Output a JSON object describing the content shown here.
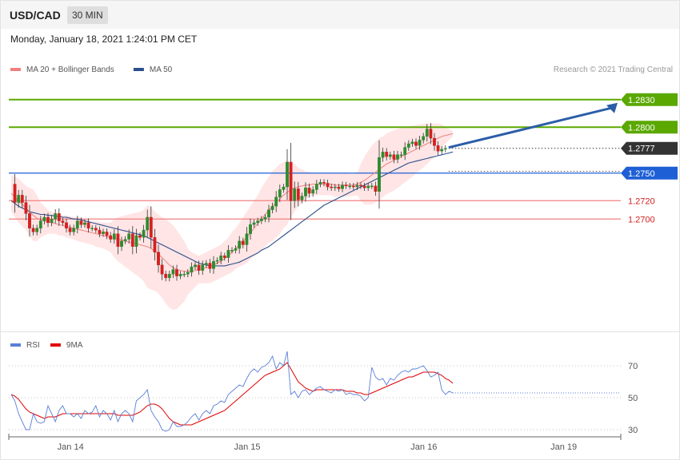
{
  "header": {
    "symbol": "USD/CAD",
    "timeframe": "30 MIN"
  },
  "timestamp": "Monday, January 18, 2021 1:24:01 PM CET",
  "credit": "Research © 2021 Trading Central",
  "colors": {
    "ma20": "#f08080",
    "ma50": "#2b4f8c",
    "band_fill": "#ffe0e0",
    "bull": "#2e8b2e",
    "bear": "#d42020",
    "resistance": "#5aa800",
    "pivot": "#1f5fd6",
    "support": "#f08080",
    "current": "#333333",
    "rsi": "#5a7fd6",
    "rsi_ma": "#e00000",
    "arrow": "#2b5ea8"
  },
  "chart_data": [
    {
      "type": "candlestick",
      "legend": [
        {
          "label": "MA 20 + Bollinger Bands",
          "color": "#f08080"
        },
        {
          "label": "MA 50",
          "color": "#2b4f8c"
        }
      ],
      "legend_position": "top-left",
      "ylim": [
        1.2582,
        1.2855
      ],
      "x_ticks": [
        {
          "label": "Jan 14",
          "index": 7
        },
        {
          "label": "Jan 15",
          "index": 55
        },
        {
          "label": "Jan 16",
          "index": 103
        },
        {
          "label": "Jan 19",
          "index": 141
        }
      ],
      "levels": [
        {
          "value": 1.283,
          "label": "1.2830",
          "kind": "resistance"
        },
        {
          "value": 1.28,
          "label": "1.2800",
          "kind": "resistance"
        },
        {
          "value": 1.2777,
          "label": "1.2777",
          "kind": "current"
        },
        {
          "value": 1.275,
          "label": "1.2750",
          "kind": "pivot"
        },
        {
          "value": 1.272,
          "label": "1.2720",
          "kind": "support"
        },
        {
          "value": 1.27,
          "label": "1.2700",
          "kind": "support"
        }
      ],
      "price_path": [
        1.2738,
        1.2718,
        1.2726,
        1.2718,
        1.2706,
        1.269,
        1.2686,
        1.269,
        1.2698,
        1.2702,
        1.2696,
        1.27,
        1.2706,
        1.2698,
        1.2696,
        1.269,
        1.2686,
        1.269,
        1.2698,
        1.2694,
        1.2696,
        1.269,
        1.269,
        1.2688,
        1.2684,
        1.2686,
        1.2682,
        1.2678,
        1.2684,
        1.267,
        1.2676,
        1.2678,
        1.2684,
        1.267,
        1.2682,
        1.268,
        1.2688,
        1.2702,
        1.268,
        1.2664,
        1.265,
        1.264,
        1.2636,
        1.264,
        1.2645,
        1.2638,
        1.264,
        1.264,
        1.2642,
        1.2648,
        1.265,
        1.2644,
        1.265,
        1.2652,
        1.2646,
        1.2654,
        1.2655,
        1.266,
        1.2658,
        1.2666,
        1.2666,
        1.2668,
        1.2676,
        1.2672,
        1.2684,
        1.2694,
        1.2696,
        1.2698,
        1.27,
        1.2702,
        1.271,
        1.2714,
        1.2724,
        1.2732,
        1.2735,
        1.2762,
        1.272,
        1.2733,
        1.2721,
        1.2725,
        1.2734,
        1.2728,
        1.2732,
        1.2738,
        1.274,
        1.2739,
        1.2735,
        1.2734,
        1.2735,
        1.2733,
        1.2737,
        1.2736,
        1.2736,
        1.2735,
        1.2737,
        1.2736,
        1.2734,
        1.2736,
        1.2736,
        1.273,
        1.2767,
        1.2773,
        1.2768,
        1.277,
        1.2765,
        1.277,
        1.277,
        1.2778,
        1.2782,
        1.2784,
        1.278,
        1.2786,
        1.279,
        1.2798,
        1.2788,
        1.278,
        1.2774,
        1.2776,
        1.2777
      ],
      "ma20": [
        1.2728,
        1.2724,
        1.272,
        1.2716,
        1.2712,
        1.2708,
        1.2704,
        1.2701,
        1.2699,
        1.2698,
        1.2697,
        1.2696,
        1.2695,
        1.2694,
        1.2693,
        1.2692,
        1.2691,
        1.269,
        1.2689,
        1.2688,
        1.2687,
        1.2686,
        1.2685,
        1.2684,
        1.2683,
        1.2682,
        1.2681,
        1.268,
        1.2679,
        1.2678,
        1.2677,
        1.2676,
        1.2675,
        1.2674,
        1.2673,
        1.2672,
        1.2671,
        1.267,
        1.2668,
        1.2665,
        1.2662,
        1.2658,
        1.2654,
        1.265,
        1.2647,
        1.2645,
        1.2644,
        1.2643,
        1.2643,
        1.2643,
        1.2644,
        1.2645,
        1.2646,
        1.2647,
        1.2648,
        1.265,
        1.2652,
        1.2654,
        1.2657,
        1.266,
        1.2664,
        1.2668,
        1.2672,
        1.2676,
        1.268,
        1.2685,
        1.269,
        1.2695,
        1.27,
        1.2705,
        1.271,
        1.2714,
        1.2718,
        1.2722,
        1.2726,
        1.2729,
        1.2732,
        1.2734,
        1.2735,
        1.2736,
        1.2737,
        1.2737,
        1.2738,
        1.2738,
        1.2738,
        1.2738,
        1.2738,
        1.2738,
        1.2737,
        1.2737,
        1.2737,
        1.2737,
        1.2737,
        1.2737,
        1.2738,
        1.274,
        1.2742,
        1.2745,
        1.2748,
        1.2751,
        1.2754,
        1.2757,
        1.276,
        1.2762,
        1.2764,
        1.2766,
        1.2768,
        1.277,
        1.2772,
        1.2774,
        1.2776,
        1.2778,
        1.278,
        1.2782,
        1.2784,
        1.2786,
        1.2788,
        1.279,
        1.2791,
        1.2792,
        1.2793
      ],
      "band_upper": [
        1.2748,
        1.2746,
        1.2744,
        1.274,
        1.2736,
        1.2734,
        1.2732,
        1.2726,
        1.2718,
        1.2714,
        1.271,
        1.2708,
        1.2706,
        1.2706,
        1.2704,
        1.2704,
        1.2703,
        1.2702,
        1.2702,
        1.2701,
        1.27,
        1.2699,
        1.2698,
        1.2698,
        1.2697,
        1.2696,
        1.2696,
        1.2696,
        1.27,
        1.2702,
        1.2703,
        1.2704,
        1.2705,
        1.2706,
        1.2707,
        1.2708,
        1.271,
        1.2715,
        1.2713,
        1.2708,
        1.2705,
        1.2702,
        1.27,
        1.2697,
        1.2693,
        1.2688,
        1.2682,
        1.2676,
        1.2668,
        1.2664,
        1.2662,
        1.266,
        1.2662,
        1.2664,
        1.2666,
        1.2668,
        1.267,
        1.2672,
        1.2676,
        1.268,
        1.2686,
        1.269,
        1.2696,
        1.2702,
        1.2708,
        1.2714,
        1.272,
        1.2726,
        1.2734,
        1.274,
        1.2746,
        1.2752,
        1.2756,
        1.276,
        1.2762,
        1.2764,
        1.2762,
        1.276,
        1.2756,
        1.2754,
        1.2752,
        1.2751,
        1.275,
        1.275,
        1.275,
        1.275,
        1.275,
        1.275,
        1.275,
        1.275,
        1.275,
        1.275,
        1.2749,
        1.2749,
        1.275,
        1.276,
        1.2768,
        1.2774,
        1.278,
        1.2784,
        1.2788,
        1.279,
        1.2793,
        1.2795,
        1.2797,
        1.2798,
        1.2799,
        1.28,
        1.2801,
        1.2802,
        1.2802,
        1.2803,
        1.2804,
        1.2804,
        1.2804,
        1.2804,
        1.2804,
        1.2803,
        1.28,
        1.2798,
        1.2796
      ],
      "band_lower": [
        1.2708,
        1.2702,
        1.2696,
        1.2692,
        1.2688,
        1.2682,
        1.2676,
        1.2676,
        1.268,
        1.2682,
        1.2684,
        1.2684,
        1.2684,
        1.2682,
        1.2682,
        1.268,
        1.2679,
        1.2678,
        1.2676,
        1.2675,
        1.2674,
        1.2673,
        1.2672,
        1.267,
        1.2669,
        1.2668,
        1.2666,
        1.2664,
        1.2658,
        1.2654,
        1.2651,
        1.2648,
        1.2645,
        1.2642,
        1.2639,
        1.2636,
        1.2632,
        1.2625,
        1.2623,
        1.2622,
        1.2619,
        1.2614,
        1.2608,
        1.2603,
        1.2601,
        1.2602,
        1.2606,
        1.261,
        1.2618,
        1.2622,
        1.2626,
        1.263,
        1.263,
        1.263,
        1.263,
        1.2632,
        1.2634,
        1.2636,
        1.2638,
        1.264,
        1.2642,
        1.2646,
        1.2648,
        1.265,
        1.2652,
        1.2656,
        1.266,
        1.2664,
        1.2666,
        1.267,
        1.2674,
        1.2676,
        1.268,
        1.2684,
        1.269,
        1.2694,
        1.2702,
        1.2708,
        1.2714,
        1.2718,
        1.2722,
        1.2723,
        1.2726,
        1.2726,
        1.2726,
        1.2726,
        1.2726,
        1.2726,
        1.2724,
        1.2724,
        1.2724,
        1.2724,
        1.2725,
        1.2725,
        1.2726,
        1.272,
        1.2716,
        1.2716,
        1.2716,
        1.2718,
        1.272,
        1.2724,
        1.2727,
        1.2729,
        1.2731,
        1.2734,
        1.2737,
        1.274,
        1.2743,
        1.2746,
        1.275,
        1.2753,
        1.2756,
        1.276,
        1.2764,
        1.2768,
        1.2772,
        1.2777,
        1.2782,
        1.2786,
        1.279
      ],
      "ma50": [
        1.272,
        1.2717,
        1.2714,
        1.2712,
        1.271,
        1.2708,
        1.2707,
        1.2706,
        1.2705,
        1.2705,
        1.2704,
        1.2704,
        1.2703,
        1.2703,
        1.2702,
        1.2702,
        1.2701,
        1.27,
        1.27,
        1.2699,
        1.2698,
        1.2697,
        1.2696,
        1.2695,
        1.2694,
        1.2693,
        1.2692,
        1.2691,
        1.269,
        1.2689,
        1.2688,
        1.2687,
        1.2686,
        1.2685,
        1.2684,
        1.2683,
        1.2682,
        1.268,
        1.2678,
        1.2676,
        1.2674,
        1.2672,
        1.267,
        1.2668,
        1.2666,
        1.2664,
        1.2662,
        1.266,
        1.2658,
        1.2656,
        1.2654,
        1.2652,
        1.2651,
        1.265,
        1.2649,
        1.2649,
        1.2649,
        1.2649,
        1.2649,
        1.265,
        1.2651,
        1.2652,
        1.2653,
        1.2655,
        1.2657,
        1.2659,
        1.2661,
        1.2663,
        1.2666,
        1.2668,
        1.267,
        1.2673,
        1.2676,
        1.2679,
        1.2682,
        1.2685,
        1.2688,
        1.2691,
        1.2694,
        1.2697,
        1.27,
        1.2703,
        1.2706,
        1.2709,
        1.2712,
        1.2715,
        1.2717,
        1.2719,
        1.2721,
        1.2723,
        1.2725,
        1.2727,
        1.2729,
        1.2731,
        1.2733,
        1.2735,
        1.2737,
        1.2739,
        1.2741,
        1.2743,
        1.2745,
        1.2747,
        1.2749,
        1.2751,
        1.2753,
        1.2755,
        1.2757,
        1.2759,
        1.2761,
        1.2762,
        1.2763,
        1.2764,
        1.2765,
        1.2766,
        1.2767,
        1.2768,
        1.2769,
        1.277,
        1.2771,
        1.2772,
        1.2773
      ]
    },
    {
      "type": "line",
      "legend": [
        {
          "label": "RSI",
          "color": "#5a7fd6"
        },
        {
          "label": "9MA",
          "color": "#e00000"
        }
      ],
      "legend_position": "top-left",
      "ylim": [
        20,
        80
      ],
      "y_ticks": [
        {
          "value": 70,
          "label": "70"
        },
        {
          "value": 50,
          "label": "50"
        },
        {
          "value": 30,
          "label": "30"
        }
      ],
      "rsi": [
        52,
        48,
        40,
        35,
        30,
        30,
        40,
        35,
        34,
        35,
        45,
        40,
        35,
        42,
        45,
        40,
        40,
        38,
        40,
        37,
        42,
        40,
        41,
        45,
        38,
        42,
        40,
        36,
        42,
        35,
        40,
        42,
        40,
        35,
        48,
        50,
        52,
        55,
        42,
        38,
        35,
        30,
        29,
        30,
        35,
        32,
        32,
        33,
        35,
        38,
        40,
        36,
        40,
        42,
        40,
        45,
        46,
        48,
        47,
        52,
        54,
        56,
        58,
        57,
        62,
        66,
        68,
        66,
        69,
        70,
        72,
        76,
        68,
        72,
        70,
        79,
        52,
        54,
        50,
        54,
        55,
        52,
        54,
        56,
        57,
        55,
        54,
        53,
        55,
        54,
        55,
        52,
        53,
        52,
        52,
        51,
        48,
        50,
        69,
        63,
        61,
        62,
        58,
        62,
        61,
        64,
        66,
        67,
        66,
        68,
        68,
        69,
        70,
        67,
        63,
        64,
        66,
        55,
        52,
        54,
        53
      ],
      "rsi_ma": [
        52,
        51,
        49,
        46,
        43,
        41,
        40,
        39,
        38,
        37,
        38,
        38,
        38,
        39,
        40,
        40,
        40,
        40,
        40,
        40,
        40,
        40,
        40,
        40,
        40,
        40,
        40,
        40,
        40,
        39,
        39,
        39,
        39,
        39,
        40,
        41,
        43,
        45,
        46,
        46,
        45,
        43,
        40,
        37,
        35,
        34,
        33,
        33,
        33,
        33,
        34,
        35,
        36,
        37,
        38,
        39,
        40,
        41,
        42,
        44,
        46,
        48,
        50,
        52,
        54,
        56,
        58,
        60,
        62,
        64,
        65,
        66,
        67,
        68,
        70,
        72,
        68,
        64,
        60,
        58,
        56,
        55,
        54,
        55,
        55,
        55,
        55,
        55,
        55,
        55,
        55,
        54,
        54,
        54,
        53,
        53,
        52,
        52,
        53,
        54,
        55,
        56,
        57,
        58,
        59,
        60,
        61,
        62,
        63,
        63,
        64,
        65,
        66,
        66,
        66,
        66,
        65,
        64,
        62,
        61,
        59
      ]
    }
  ]
}
